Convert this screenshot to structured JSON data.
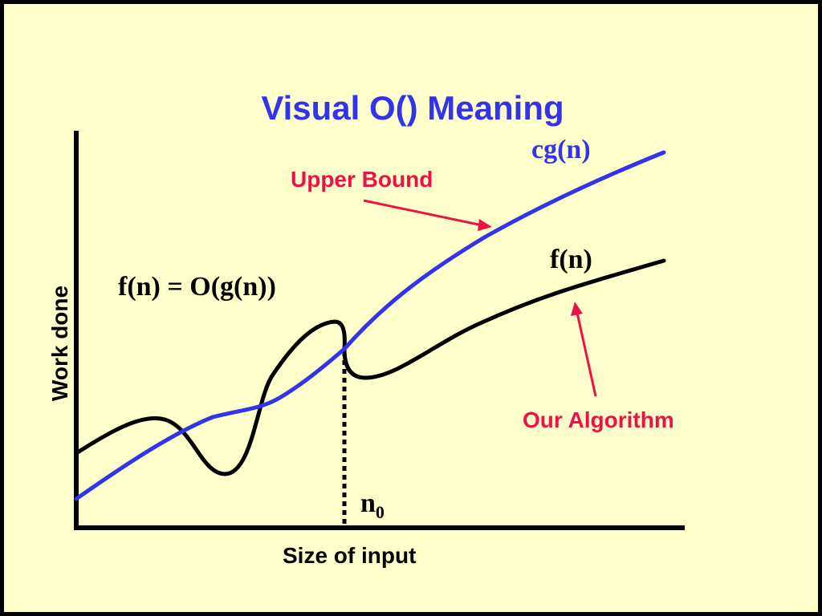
{
  "title": "Visual O() Meaning",
  "axes": {
    "x_label": "Size of input",
    "y_label": "Work done"
  },
  "curves": {
    "cg": {
      "label": "cg(n)",
      "color": "#3333ee"
    },
    "f": {
      "label": "f(n)",
      "color": "#000000"
    }
  },
  "annotations": {
    "upper_bound": "Upper Bound",
    "our_algorithm": "Our Algorithm",
    "equation": "f(n) = O(g(n))",
    "n0_base": "n",
    "n0_sub": "0"
  },
  "colors": {
    "background": "#ffffcc",
    "title": "#3333ee",
    "annotation": "#ee1144"
  }
}
